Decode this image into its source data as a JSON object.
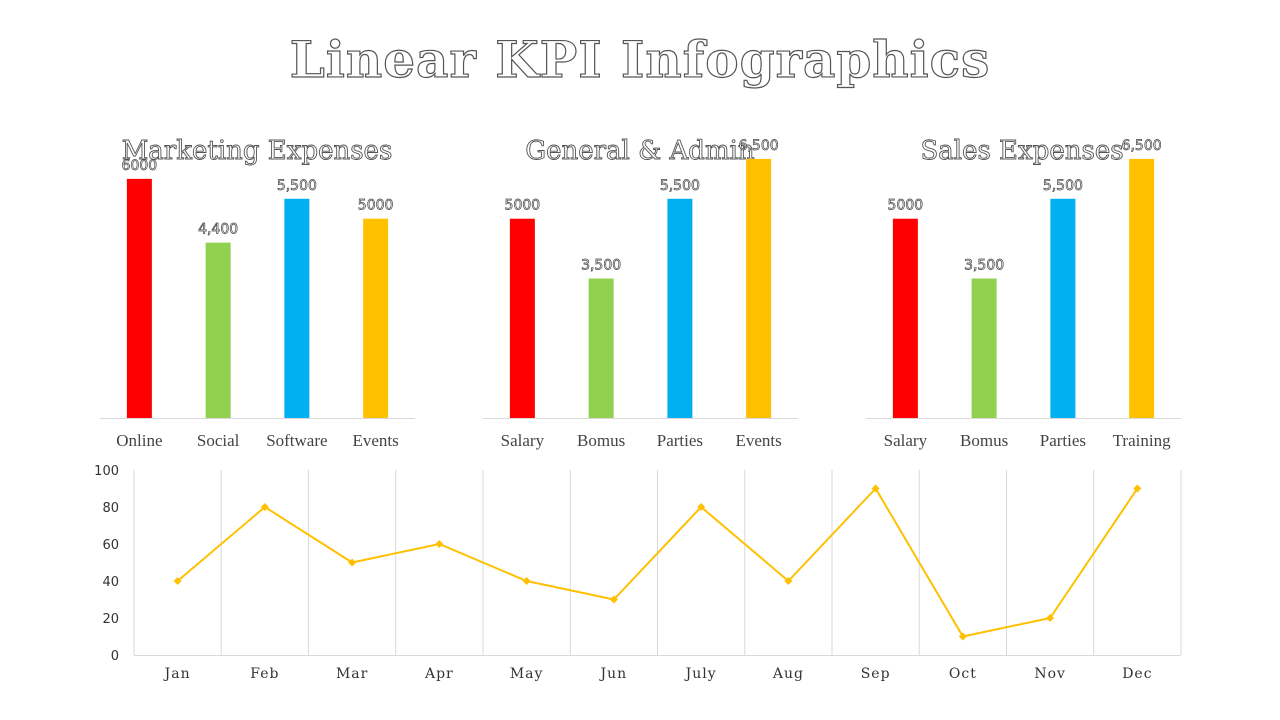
{
  "title": "Linear KPI Infographics",
  "colors": {
    "red": "#ff0000",
    "green": "#92d050",
    "blue": "#00b0f0",
    "yellow": "#ffc000",
    "line": "#ffc000"
  },
  "chart_data": [
    {
      "type": "bar",
      "title": "Marketing Expenses",
      "categories": [
        "Online",
        "Social",
        "Software",
        "Events"
      ],
      "values": [
        6000,
        4400,
        5500,
        5000
      ],
      "labels": [
        "6000",
        "4,400",
        "5,500",
        "5000"
      ],
      "colors": [
        "#ff0000",
        "#92d050",
        "#00b0f0",
        "#ffc000"
      ],
      "ylim": [
        0,
        7000
      ],
      "grid": false
    },
    {
      "type": "bar",
      "title": "General & Admin",
      "categories": [
        "Salary",
        "Bomus",
        "Parties",
        "Events"
      ],
      "values": [
        5000,
        3500,
        5500,
        6500
      ],
      "labels": [
        "5000",
        "3,500",
        "5,500",
        "6,500"
      ],
      "colors": [
        "#ff0000",
        "#92d050",
        "#00b0f0",
        "#ffc000"
      ],
      "ylim": [
        0,
        7000
      ],
      "grid": false
    },
    {
      "type": "bar",
      "title": "Sales Expenses",
      "categories": [
        "Salary",
        "Bomus",
        "Parties",
        "Training"
      ],
      "values": [
        5000,
        3500,
        5500,
        6500
      ],
      "labels": [
        "5000",
        "3,500",
        "5,500",
        "6,500"
      ],
      "colors": [
        "#ff0000",
        "#92d050",
        "#00b0f0",
        "#ffc000"
      ],
      "ylim": [
        0,
        7000
      ],
      "grid": false
    },
    {
      "type": "line",
      "categories": [
        "Jan",
        "Feb",
        "Mar",
        "Apr",
        "May",
        "Jun",
        "July",
        "Aug",
        "Sep",
        "Oct",
        "Nov",
        "Dec"
      ],
      "values": [
        40,
        80,
        50,
        60,
        40,
        30,
        80,
        40,
        90,
        10,
        20,
        90
      ],
      "yticks": [
        0,
        20,
        40,
        60,
        80,
        100
      ],
      "ylim": [
        0,
        100
      ],
      "grid": "vertical",
      "marker": "diamond"
    }
  ]
}
